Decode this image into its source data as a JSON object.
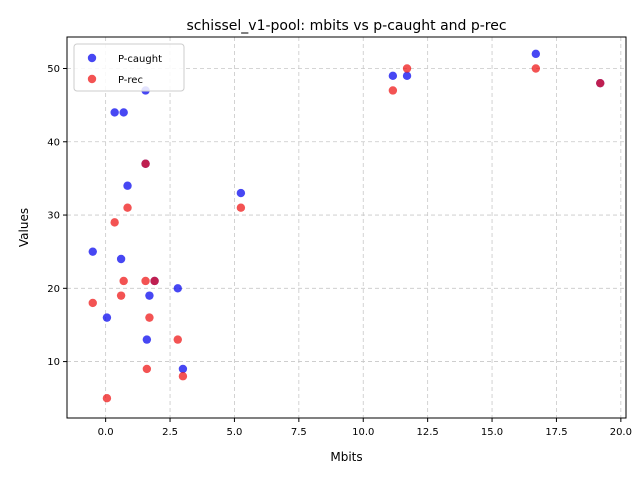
{
  "chart_data": {
    "type": "scatter",
    "title": "schissel_v1-pool: mbits vs p-caught and p-rec",
    "xlabel": "Mbits",
    "ylabel": "Values",
    "xlim": [
      -1.5,
      20.2
    ],
    "ylim": [
      2.3,
      54.3
    ],
    "xticks": [
      0.0,
      2.5,
      5.0,
      7.5,
      10.0,
      12.5,
      15.0,
      17.5,
      20.0
    ],
    "xtick_labels": [
      "0.0",
      "2.5",
      "5.0",
      "7.5",
      "10.0",
      "12.5",
      "15.0",
      "17.5",
      "20.0"
    ],
    "yticks": [
      10,
      20,
      30,
      40,
      50
    ],
    "ytick_labels": [
      "10",
      "20",
      "30",
      "40",
      "50"
    ],
    "grid": true,
    "legend_position": "upper-left",
    "series": [
      {
        "name": "P-caught",
        "color": "#0000ee",
        "points": [
          [
            -0.5,
            25
          ],
          [
            0.05,
            16
          ],
          [
            0.35,
            44
          ],
          [
            0.6,
            24
          ],
          [
            0.7,
            44
          ],
          [
            0.85,
            34
          ],
          [
            1.55,
            47
          ],
          [
            1.55,
            37
          ],
          [
            1.6,
            13
          ],
          [
            1.7,
            19
          ],
          [
            1.9,
            21
          ],
          [
            2.8,
            20
          ],
          [
            3.0,
            9
          ],
          [
            5.25,
            33
          ],
          [
            11.15,
            49
          ],
          [
            11.7,
            49
          ],
          [
            16.7,
            52
          ],
          [
            19.2,
            48
          ]
        ]
      },
      {
        "name": "P-rec",
        "color": "#ee1111",
        "points": [
          [
            -0.5,
            18
          ],
          [
            0.05,
            5
          ],
          [
            0.35,
            29
          ],
          [
            0.6,
            19
          ],
          [
            0.7,
            21
          ],
          [
            0.85,
            31
          ],
          [
            1.55,
            37
          ],
          [
            1.55,
            21
          ],
          [
            1.6,
            9
          ],
          [
            1.7,
            16
          ],
          [
            1.9,
            21
          ],
          [
            2.8,
            13
          ],
          [
            3.0,
            8
          ],
          [
            5.25,
            31
          ],
          [
            11.15,
            47
          ],
          [
            11.7,
            50
          ],
          [
            16.7,
            50
          ],
          [
            19.2,
            48
          ]
        ]
      }
    ]
  }
}
